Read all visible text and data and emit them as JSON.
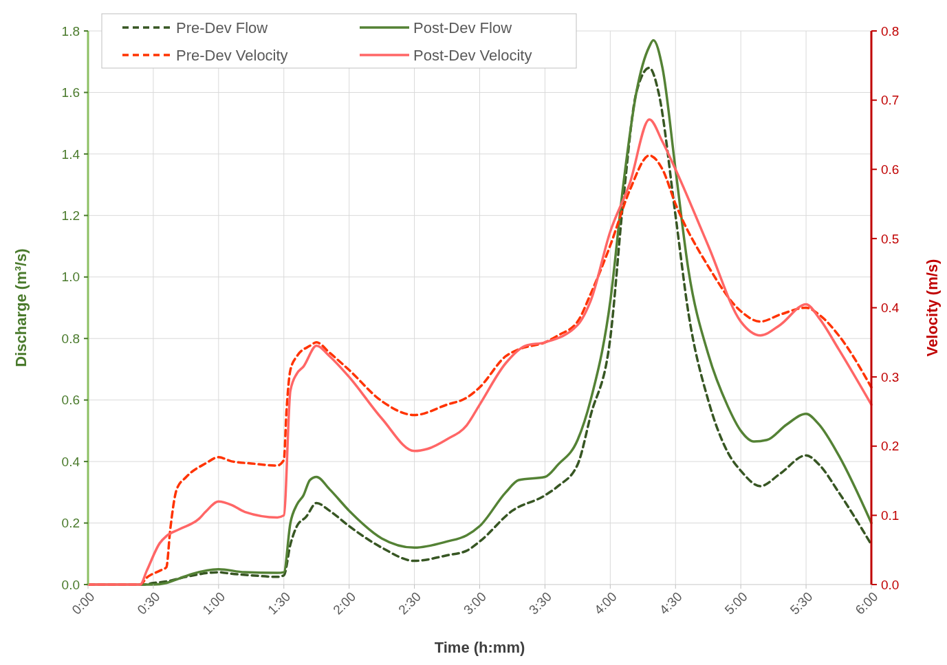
{
  "chart_data": {
    "type": "line",
    "xlabel": "Time (h:mm)",
    "ylabel": "Discharge (m³/s)",
    "y2label": "Velocity (m/s)",
    "xlim": [
      0,
      6
    ],
    "xticks": [
      {
        "value": 0,
        "label": "0:00"
      },
      {
        "value": 0.5,
        "label": "0:30"
      },
      {
        "value": 1,
        "label": "1:00"
      },
      {
        "value": 1.5,
        "label": "1:30"
      },
      {
        "value": 2,
        "label": "2:00"
      },
      {
        "value": 2.5,
        "label": "2:30"
      },
      {
        "value": 3,
        "label": "3:00"
      },
      {
        "value": 3.5,
        "label": "3:30"
      },
      {
        "value": 4,
        "label": "4:00"
      },
      {
        "value": 4.5,
        "label": "4:30"
      },
      {
        "value": 5,
        "label": "5:00"
      },
      {
        "value": 5.5,
        "label": "5:30"
      },
      {
        "value": 6,
        "label": "6:00"
      }
    ],
    "ylim": [
      0,
      1.8
    ],
    "yticks": [
      {
        "value": 0,
        "label": "0.0"
      },
      {
        "value": 0.2,
        "label": "0.2"
      },
      {
        "value": 0.4,
        "label": "0.4"
      },
      {
        "value": 0.6,
        "label": "0.6"
      },
      {
        "value": 0.8,
        "label": "0.8"
      },
      {
        "value": 1,
        "label": "1.0"
      },
      {
        "value": 1.2,
        "label": "1.2"
      },
      {
        "value": 1.4,
        "label": "1.4"
      },
      {
        "value": 1.6,
        "label": "1.6"
      },
      {
        "value": 1.8,
        "label": "1.8"
      }
    ],
    "y2lim": [
      0,
      0.8
    ],
    "y2ticks": [
      {
        "value": 0,
        "label": "0.0"
      },
      {
        "value": 0.1,
        "label": "0.1"
      },
      {
        "value": 0.2,
        "label": "0.2"
      },
      {
        "value": 0.3,
        "label": "0.3"
      },
      {
        "value": 0.4,
        "label": "0.4"
      },
      {
        "value": 0.5,
        "label": "0.5"
      },
      {
        "value": 0.6,
        "label": "0.6"
      },
      {
        "value": 0.7,
        "label": "0.7"
      },
      {
        "value": 0.8,
        "label": "0.8"
      }
    ],
    "grid": true,
    "legend": "top left",
    "marker": "none",
    "series": [
      {
        "name": "Pre-Dev Flow",
        "color": "#375623",
        "line_style": "dashed",
        "x": [
          0,
          0.42,
          0.5,
          0.6,
          0.75,
          1.0,
          1.1,
          1.25,
          1.45,
          1.5,
          1.55,
          1.6,
          1.67,
          1.75,
          1.85,
          2.0,
          2.25,
          2.5,
          2.75,
          2.9,
          3.0,
          3.25,
          3.5,
          3.6,
          3.75,
          3.85,
          4.0,
          4.1,
          4.2,
          4.3,
          4.37,
          4.5,
          4.6,
          4.75,
          4.9,
          5.0,
          5.15,
          5.3,
          5.5,
          5.6,
          5.75,
          6.0
        ],
        "values": [
          0,
          0,
          0.005,
          0.01,
          0.025,
          0.04,
          0.035,
          0.03,
          0.025,
          0.03,
          0.13,
          0.19,
          0.22,
          0.265,
          0.24,
          0.19,
          0.12,
          0.077,
          0.095,
          0.11,
          0.14,
          0.24,
          0.29,
          0.32,
          0.39,
          0.55,
          0.8,
          1.25,
          1.6,
          1.68,
          1.6,
          1.2,
          0.88,
          0.6,
          0.43,
          0.37,
          0.32,
          0.36,
          0.42,
          0.39,
          0.3,
          0.13
        ]
      },
      {
        "name": "Post-Dev Flow",
        "color": "#548235",
        "line_style": "solid",
        "x": [
          0,
          0.5,
          0.6,
          0.7,
          0.8,
          1.0,
          1.2,
          1.45,
          1.5,
          1.55,
          1.6,
          1.65,
          1.7,
          1.75,
          1.85,
          2.0,
          2.25,
          2.5,
          2.75,
          2.9,
          3.0,
          3.2,
          3.3,
          3.5,
          3.6,
          3.75,
          3.85,
          4.0,
          4.1,
          4.2,
          4.3,
          4.33,
          4.4,
          4.5,
          4.6,
          4.75,
          4.9,
          5.0,
          5.1,
          5.2,
          5.35,
          5.5,
          5.6,
          5.75,
          6.0
        ],
        "values": [
          0,
          0,
          0.005,
          0.02,
          0.035,
          0.05,
          0.04,
          0.038,
          0.04,
          0.2,
          0.26,
          0.29,
          0.34,
          0.35,
          0.31,
          0.24,
          0.15,
          0.12,
          0.14,
          0.16,
          0.19,
          0.3,
          0.34,
          0.35,
          0.39,
          0.47,
          0.6,
          0.92,
          1.3,
          1.6,
          1.75,
          1.77,
          1.68,
          1.35,
          1.02,
          0.75,
          0.58,
          0.5,
          0.465,
          0.47,
          0.52,
          0.555,
          0.52,
          0.42,
          0.2
        ]
      },
      {
        "name": "Pre-Dev Velocity",
        "color": "#ff3300",
        "line_style": "dashed",
        "axis": "y2",
        "x": [
          0,
          0.4,
          0.45,
          0.55,
          0.6,
          0.63,
          0.68,
          0.75,
          0.9,
          1.0,
          1.1,
          1.25,
          1.45,
          1.5,
          1.52,
          1.55,
          1.6,
          1.7,
          1.75,
          1.85,
          2.0,
          2.25,
          2.5,
          2.75,
          2.9,
          3.0,
          3.2,
          3.3,
          3.5,
          3.6,
          3.75,
          3.85,
          4.0,
          4.15,
          4.3,
          4.4,
          4.5,
          4.75,
          5.0,
          5.15,
          5.3,
          5.5,
          5.6,
          5.75,
          6.0
        ],
        "values": [
          0,
          0,
          0.01,
          0.02,
          0.025,
          0.08,
          0.138,
          0.155,
          0.175,
          0.184,
          0.178,
          0.175,
          0.172,
          0.18,
          0.25,
          0.31,
          0.33,
          0.345,
          0.35,
          0.335,
          0.31,
          0.265,
          0.245,
          0.26,
          0.27,
          0.285,
          0.33,
          0.34,
          0.35,
          0.36,
          0.38,
          0.42,
          0.49,
          0.57,
          0.62,
          0.6,
          0.55,
          0.46,
          0.395,
          0.38,
          0.39,
          0.4,
          0.39,
          0.36,
          0.285
        ]
      },
      {
        "name": "Post-Dev Velocity",
        "color": "#ff6666",
        "line_style": "solid",
        "axis": "y2",
        "x": [
          0,
          0.4,
          0.45,
          0.55,
          0.6,
          0.7,
          0.85,
          0.9,
          1.0,
          1.1,
          1.2,
          1.45,
          1.5,
          1.55,
          1.6,
          1.65,
          1.75,
          1.85,
          2.0,
          2.25,
          2.5,
          2.6,
          2.75,
          2.9,
          3.0,
          3.2,
          3.35,
          3.5,
          3.75,
          3.85,
          4.0,
          4.15,
          4.3,
          4.4,
          4.5,
          4.75,
          5.0,
          5.15,
          5.3,
          5.5,
          5.6,
          5.75,
          6.0
        ],
        "values": [
          0,
          0,
          0.02,
          0.06,
          0.07,
          0.08,
          0.095,
          0.105,
          0.12,
          0.115,
          0.105,
          0.097,
          0.1,
          0.28,
          0.305,
          0.315,
          0.345,
          0.33,
          0.3,
          0.24,
          0.193,
          0.196,
          0.21,
          0.23,
          0.26,
          0.32,
          0.345,
          0.35,
          0.375,
          0.41,
          0.51,
          0.58,
          0.672,
          0.64,
          0.6,
          0.49,
          0.38,
          0.36,
          0.375,
          0.405,
          0.385,
          0.34,
          0.26
        ]
      }
    ]
  }
}
